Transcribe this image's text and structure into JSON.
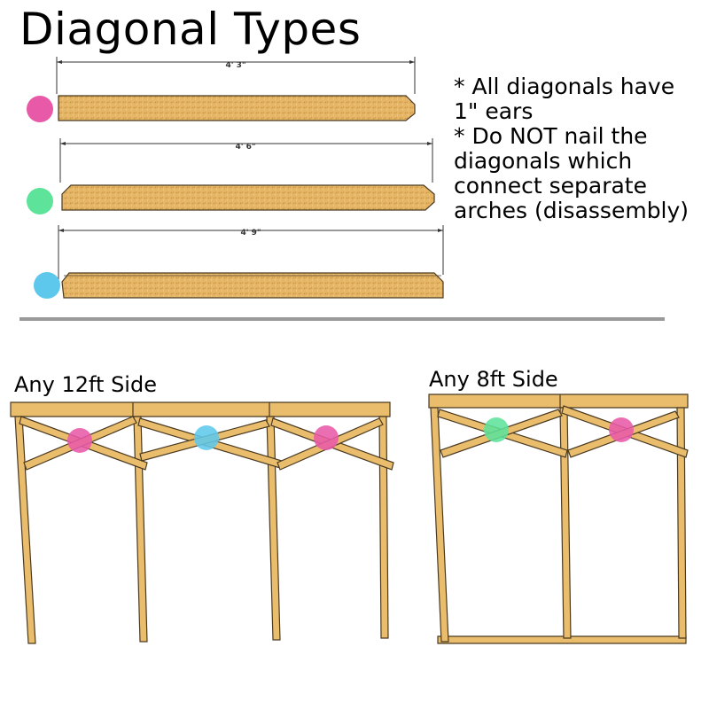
{
  "title": "Diagonal Types",
  "notes": [
    "* All diagonals have",
    "1\" ears",
    "* Do NOT nail the",
    "diagonals which",
    "connect separate",
    "arches (disassembly)"
  ],
  "diagonals": [
    {
      "length_label": "4' 3\"",
      "color": "#e85aa8",
      "color_name": "pink"
    },
    {
      "length_label": "4' 6\"",
      "color": "#5de39a",
      "color_name": "green"
    },
    {
      "length_label": "4' 9\"",
      "color": "#5ec8ec",
      "color_name": "blue"
    }
  ],
  "side_12ft": {
    "label": "Any 12ft Side",
    "bay_markers": [
      "pink",
      "blue",
      "pink"
    ]
  },
  "side_8ft": {
    "label": "Any 8ft Side",
    "bay_markers": [
      "green",
      "pink"
    ]
  },
  "colors": {
    "wood": "#e9bd6c",
    "wood_edge": "#4a3a22",
    "board": "#e6b565",
    "divider": "#999999"
  }
}
